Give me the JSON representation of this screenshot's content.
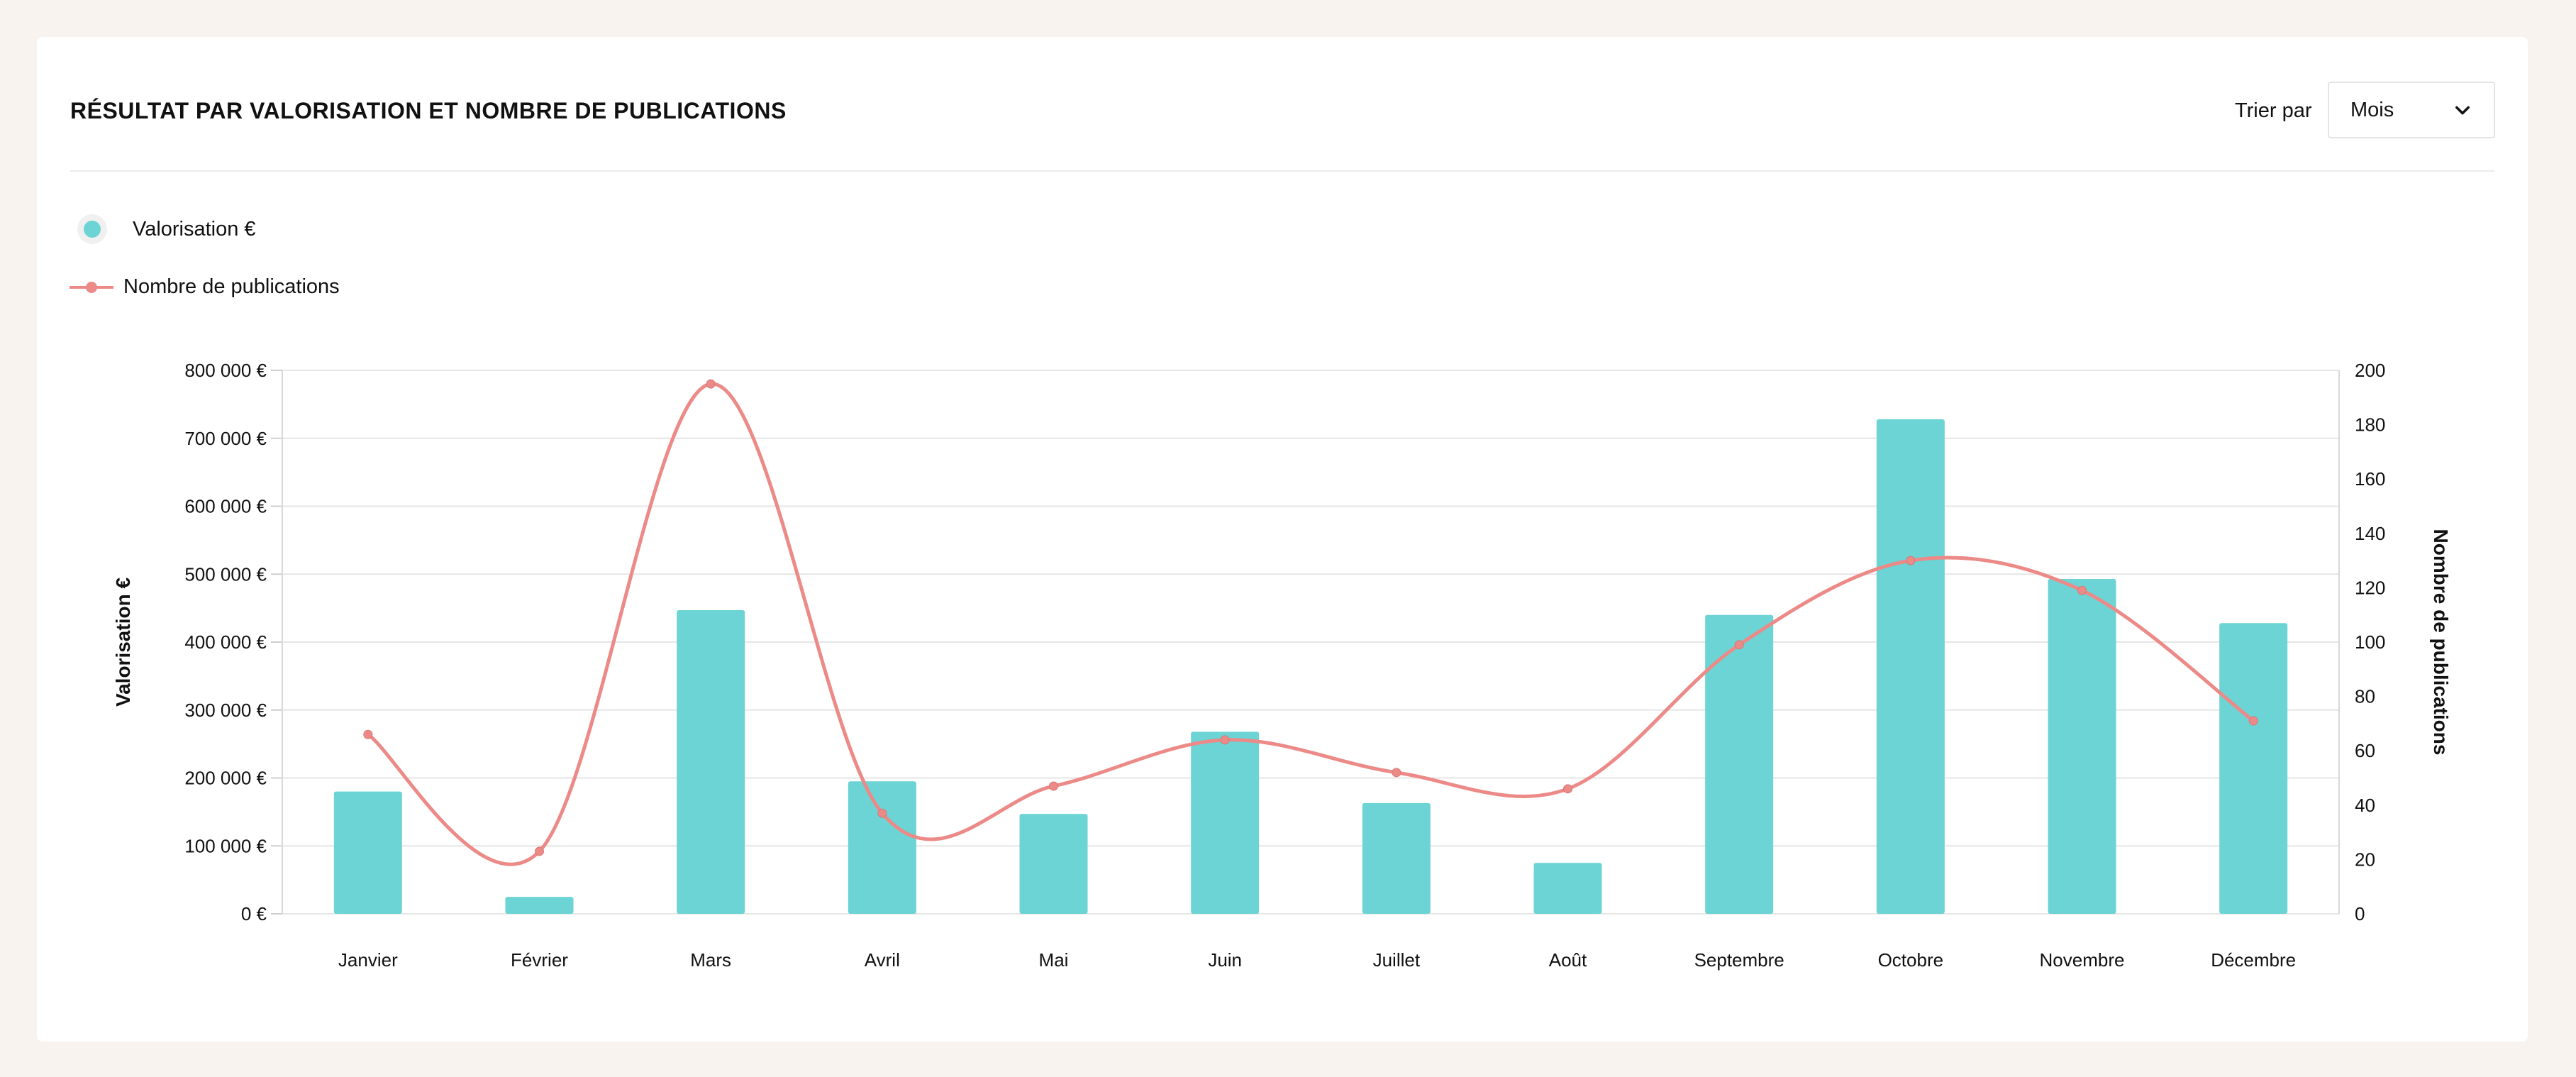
{
  "header": {
    "title": "RÉSULTAT PAR VALORISATION ET NOMBRE DE PUBLICATIONS",
    "sort_label": "Trier par",
    "sort_value": "Mois"
  },
  "legend": {
    "valorisation": "Valorisation €",
    "publications": "Nombre de publications"
  },
  "colors": {
    "bar": "#6cd4d4",
    "line": "#ec8a88",
    "grid": "#e6e6e6"
  },
  "chart_data": {
    "type": "bar",
    "categories": [
      "Janvier",
      "Février",
      "Mars",
      "Avril",
      "Mai",
      "Juin",
      "Juillet",
      "Août",
      "Septembre",
      "Octobre",
      "Novembre",
      "Décembre"
    ],
    "series": [
      {
        "name": "Valorisation €",
        "type": "bar",
        "axis": "left",
        "values": [
          180000,
          25000,
          447000,
          195000,
          147000,
          268000,
          163000,
          75000,
          440000,
          728000,
          493000,
          428000
        ]
      },
      {
        "name": "Nombre de publications",
        "type": "line",
        "axis": "right",
        "values": [
          66,
          23,
          195,
          37,
          47,
          64,
          52,
          46,
          99,
          130,
          119,
          71
        ]
      }
    ],
    "y_left": {
      "label": "Valorisation €",
      "range": [
        0,
        800000
      ],
      "ticks": [
        "0 €",
        "100 000 €",
        "200 000 €",
        "300 000 €",
        "400 000 €",
        "500 000 €",
        "600 000 €",
        "700 000 €",
        "800 000 €"
      ]
    },
    "y_right": {
      "label": "Nombre de publications",
      "range": [
        0,
        200
      ],
      "ticks": [
        "0",
        "20",
        "40",
        "60",
        "80",
        "100",
        "120",
        "140",
        "160",
        "180",
        "200"
      ]
    },
    "grid": true
  }
}
